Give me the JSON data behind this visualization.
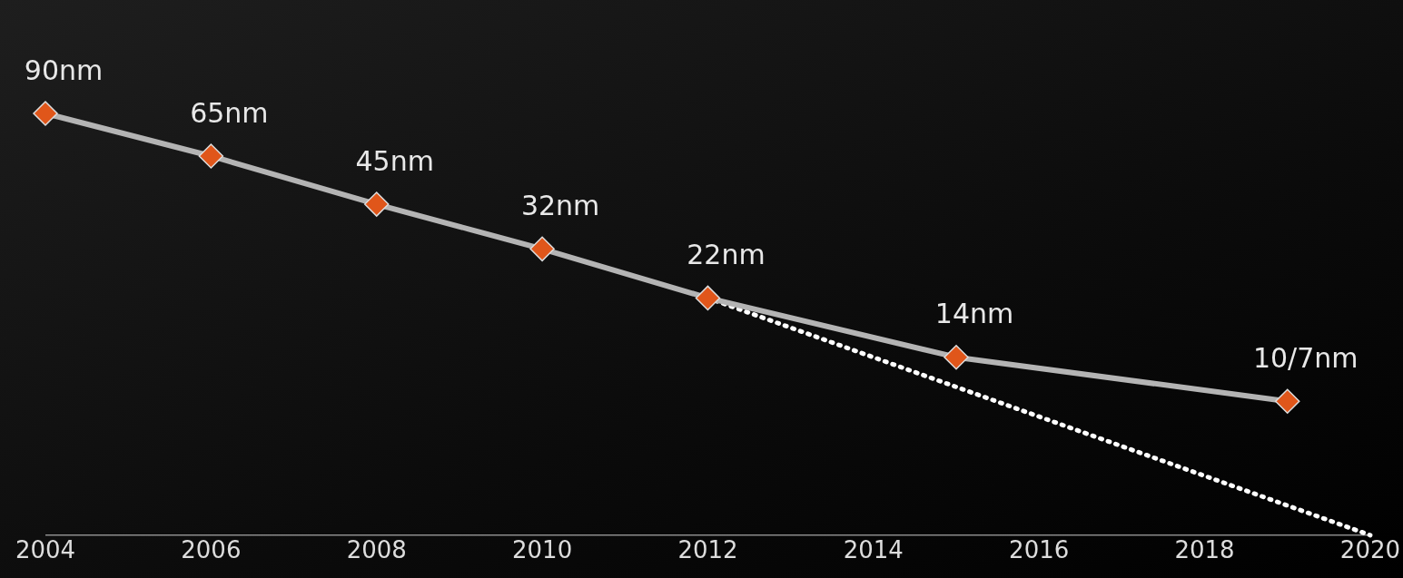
{
  "chart_data": {
    "type": "line",
    "log": true,
    "tick_labels": "x",
    "xlim": [
      2004,
      2020
    ],
    "xticks": [
      2004,
      2006,
      2008,
      2010,
      2012,
      2014,
      2016,
      2018,
      2020
    ],
    "grid": false,
    "legend": false,
    "series": [
      {
        "type": "line",
        "color": "#b4b4b4",
        "colors": [
          "#e0561a",
          "#e0561a",
          "#e0561a",
          "#e0561a",
          "#e0561a",
          "#e0561a",
          "#e0561a"
        ],
        "marker": "diamond",
        "line_style": "solid",
        "x": [
          2004,
          2006,
          2008,
          2010,
          2012,
          2015,
          2019
        ],
        "values": [
          90,
          65,
          45,
          32,
          22,
          14,
          10
        ],
        "value_labels": [
          "90nm",
          "65nm",
          "45nm",
          "32nm",
          "22nm",
          "14nm",
          "10/7nm"
        ]
      },
      {
        "type": "line",
        "color": "#ffffff",
        "marker": "none",
        "line_style": "dotted",
        "x": [
          2012,
          2020
        ],
        "values": [
          22,
          3.6
        ]
      }
    ]
  }
}
